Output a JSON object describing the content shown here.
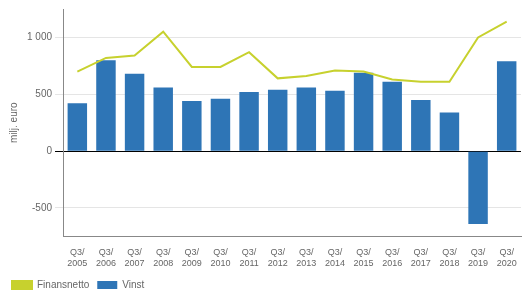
{
  "chart_data": {
    "type": "bar",
    "ylabel": "milj. euro",
    "categories": [
      "Q3/\n2005",
      "Q3/\n2006",
      "Q3/\n2007",
      "Q3/\n2008",
      "Q3/\n2009",
      "Q3/\n2010",
      "Q3/\n2011",
      "Q3/\n2012",
      "Q3/\n2013",
      "Q3/\n2014",
      "Q3/\n2015",
      "Q3/\n2016",
      "Q3/\n2017",
      "Q3/\n2018",
      "Q3/\n2019",
      "Q3/\n2020"
    ],
    "series": [
      {
        "name": "Vinst",
        "type": "bar",
        "color": "#2e75b6",
        "values": [
          420,
          800,
          680,
          560,
          440,
          460,
          520,
          540,
          560,
          530,
          690,
          610,
          450,
          340,
          -640,
          790
        ]
      },
      {
        "name": "Finansnetto",
        "type": "line",
        "color": "#c7d12e",
        "values": [
          700,
          820,
          840,
          1050,
          740,
          740,
          870,
          640,
          660,
          710,
          700,
          630,
          610,
          610,
          1000,
          1140
        ]
      }
    ],
    "ylim": [
      -750,
      1250
    ],
    "yticks": [
      -500,
      0,
      500,
      {
        "value": 1000,
        "label": "1 000"
      }
    ],
    "grid": "y",
    "legend": "lower left"
  }
}
